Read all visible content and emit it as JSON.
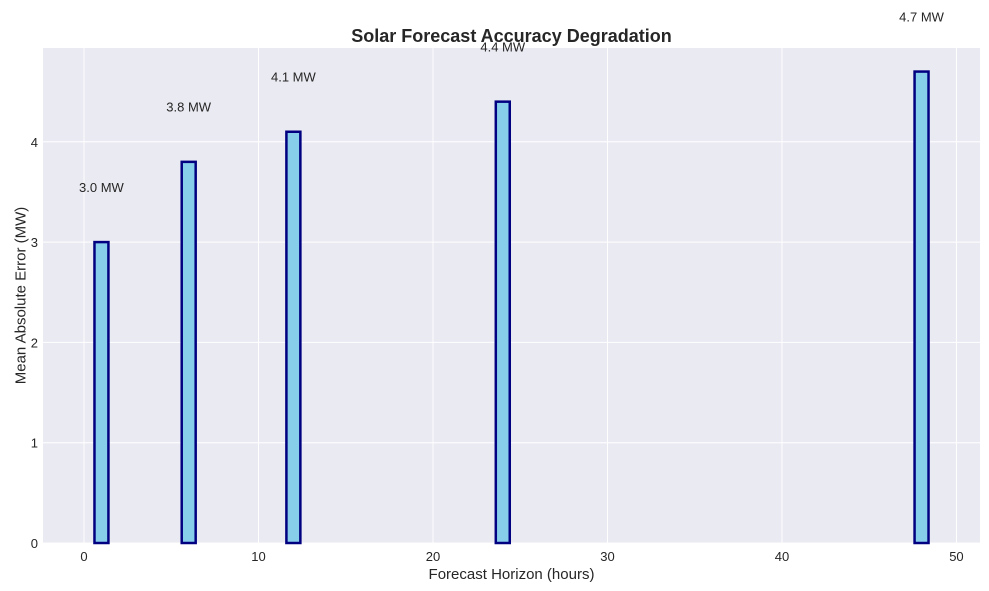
{
  "chart_data": {
    "type": "bar",
    "title": "Solar Forecast Accuracy Degradation",
    "xlabel": "Forecast Horizon (hours)",
    "ylabel": "Mean Absolute Error (MW)",
    "x": [
      1,
      6,
      12,
      24,
      48
    ],
    "values": [
      3.0,
      3.8,
      4.1,
      4.4,
      4.7
    ],
    "data_labels": [
      "3.0 MW",
      "3.8 MW",
      "4.1 MW",
      "4.4 MW",
      "4.7 MW"
    ],
    "xlim": [
      -2.35,
      51.35
    ],
    "ylim": [
      0,
      4.935
    ],
    "x_ticks": [
      0,
      10,
      20,
      30,
      40,
      50
    ],
    "y_ticks": [
      0,
      1,
      2,
      3,
      4
    ],
    "x_tick_labels": [
      "0",
      "10",
      "20",
      "30",
      "40",
      "50"
    ],
    "y_tick_labels": [
      "0",
      "1",
      "2",
      "3",
      "4"
    ],
    "bar_width": 0.8,
    "grid": true,
    "colors": {
      "bar_fill": "#87ceeb",
      "bar_edge": "#000080",
      "plot_background": "#eaeaf2",
      "grid": "#ffffff",
      "text": "#262626"
    }
  }
}
